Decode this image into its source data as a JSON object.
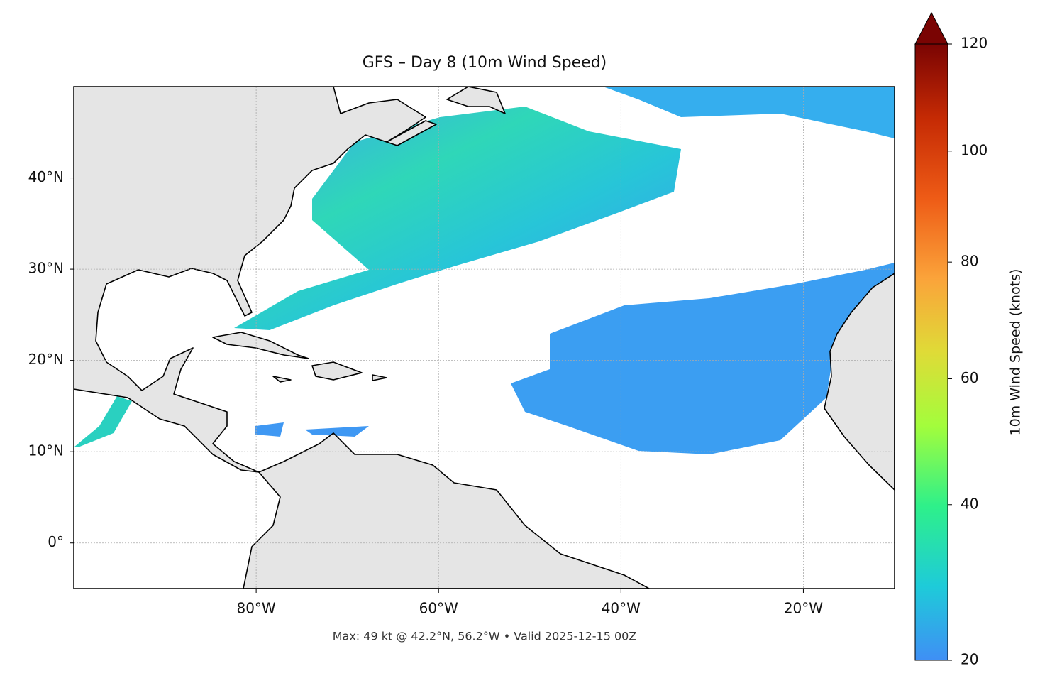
{
  "title": "GFS – Day 8 (10m Wind Speed)",
  "map": {
    "lonlim": [
      -100,
      -10
    ],
    "latlim": [
      -5,
      50
    ],
    "grid": true,
    "lon_ticks": [
      {
        "value": -80,
        "label": "80°W"
      },
      {
        "value": -60,
        "label": "60°W"
      },
      {
        "value": -40,
        "label": "40°W"
      },
      {
        "value": -20,
        "label": "20°W"
      }
    ],
    "lat_ticks": [
      {
        "value": 0,
        "label": "0°"
      },
      {
        "value": 10,
        "label": "10°N"
      },
      {
        "value": 20,
        "label": "20°N"
      },
      {
        "value": 30,
        "label": "30°N"
      },
      {
        "value": 40,
        "label": "40°N"
      }
    ]
  },
  "colorbar": {
    "label": "10m Wind Speed (knots)",
    "lim": [
      20,
      120
    ],
    "ticks": [
      20,
      40,
      60,
      80,
      100,
      120
    ],
    "norm": "power",
    "gamma": 0.855
  },
  "caption": "Max: 49 kt @ 42.2°N, 56.2°W • Valid 2025-12-15 00Z"
}
